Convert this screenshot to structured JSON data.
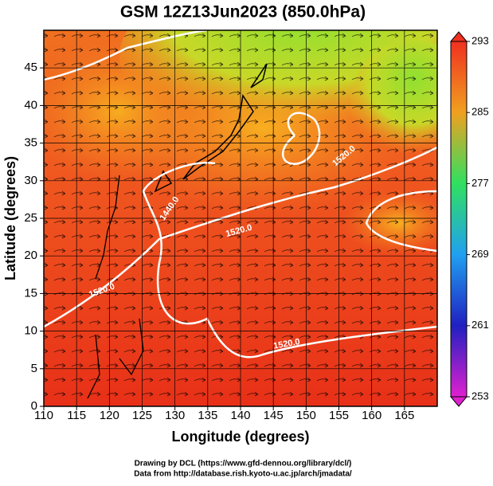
{
  "chart_data": {
    "type": "map",
    "title": "GSM 12Z13Jun2023 (850.0hPa)",
    "xlabel": "Longitude (degrees)",
    "ylabel": "Latitude  (degrees)",
    "xlim": [
      110,
      170
    ],
    "ylim": [
      0,
      50
    ],
    "xticks": [
      110,
      115,
      120,
      125,
      130,
      135,
      140,
      145,
      150,
      155,
      160,
      165
    ],
    "yticks": [
      0,
      5,
      10,
      15,
      20,
      25,
      30,
      35,
      40,
      45
    ],
    "grid": true,
    "clim": [
      253,
      293
    ],
    "cticks": [
      253,
      261,
      269,
      277,
      285,
      293
    ],
    "colormap": [
      "#e020d0",
      "#2020c0",
      "#20a0f0",
      "#30e060",
      "#f0a020",
      "#f03020"
    ],
    "contour_labels": [
      {
        "value": 1440,
        "label": "1440.0"
      },
      {
        "value": 1520,
        "label": "1520.0"
      },
      {
        "value": 1520,
        "label": "1520.0"
      },
      {
        "value": 1520,
        "label": "1520.0"
      },
      {
        "value": 1520,
        "label": "1520.0"
      }
    ],
    "credits": [
      "Drawing by DCL (https://www.gfd-dennou.org/library/dcl/)",
      "Data from http://database.rish.kyoto-u.ac.jp/arch/jmadata/"
    ]
  }
}
